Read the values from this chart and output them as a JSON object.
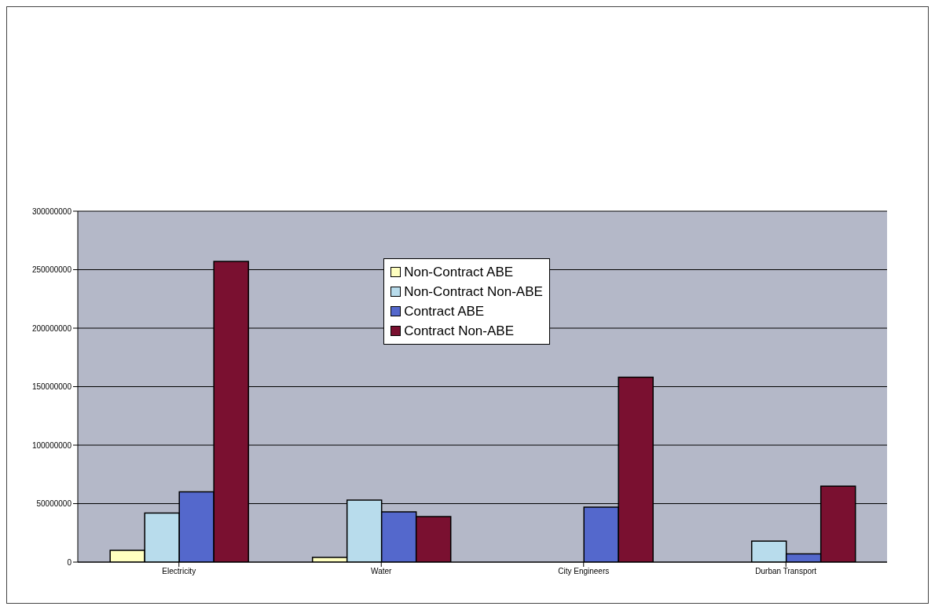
{
  "chart_data": {
    "type": "bar",
    "categories": [
      "Electricity",
      "Water",
      "City Engineers",
      "Durban Transport"
    ],
    "series": [
      {
        "name": "Non-Contract ABE",
        "color": "#ffffc0",
        "values": [
          10000000,
          4000000,
          null,
          null
        ]
      },
      {
        "name": "Non-Contract Non-ABE",
        "color": "#b8dcec",
        "values": [
          42000000,
          53000000,
          null,
          18000000
        ]
      },
      {
        "name": "Contract ABE",
        "color": "#5468cc",
        "values": [
          60000000,
          43000000,
          47000000,
          7000000
        ]
      },
      {
        "name": "Contract Non-ABE",
        "color": "#7a1030",
        "values": [
          257000000,
          39000000,
          158000000,
          65000000
        ]
      }
    ],
    "ylim": [
      0,
      300000000
    ],
    "yticks": [
      0,
      50000000,
      100000000,
      150000000,
      200000000,
      250000000,
      300000000
    ],
    "grid": "y",
    "legend": "top"
  }
}
